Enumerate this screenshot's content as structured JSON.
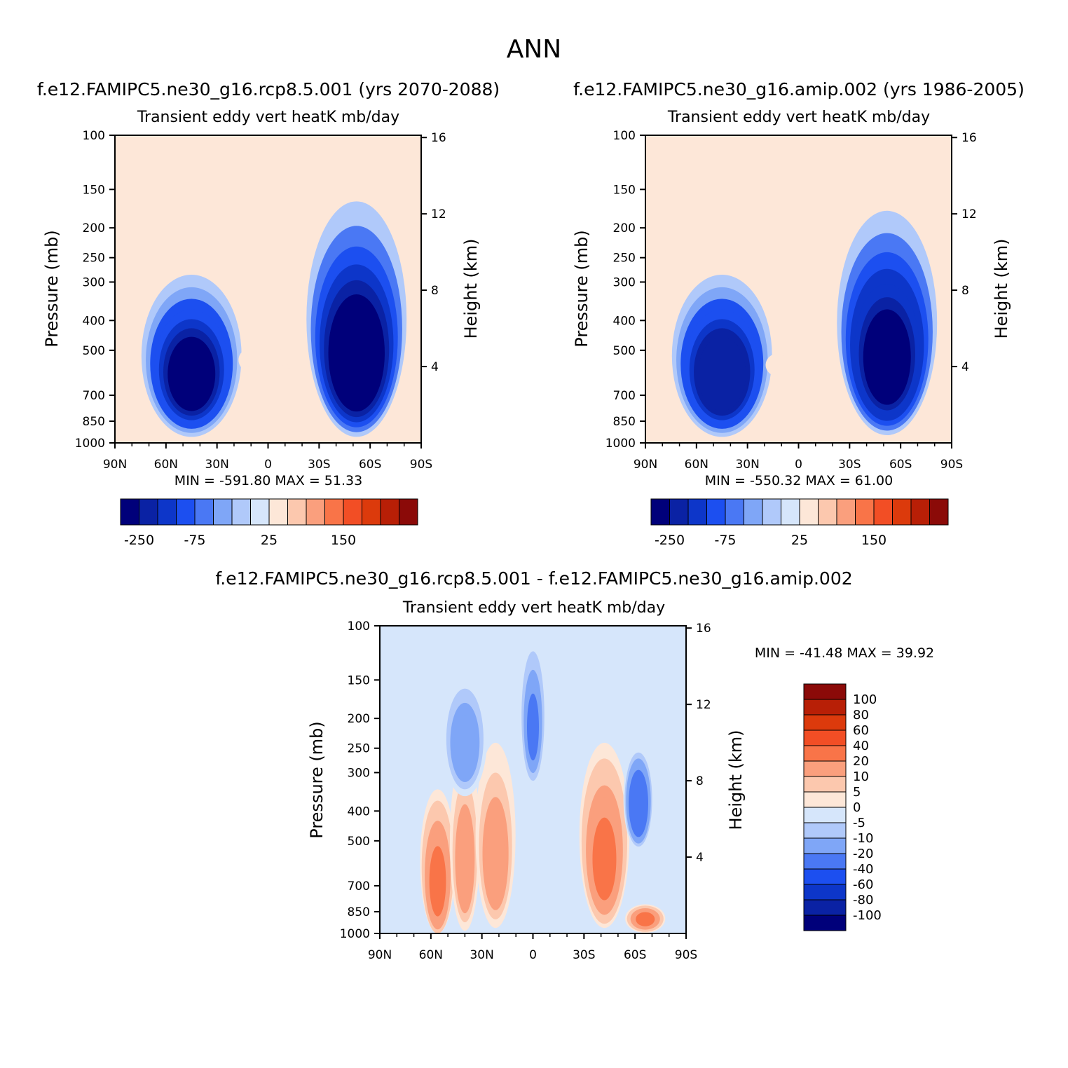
{
  "figure": {
    "title": "ANN"
  },
  "colors": {
    "main_scale": [
      "#00007a",
      "#0a22a4",
      "#0d36c9",
      "#1c4ff0",
      "#4a78f4",
      "#7fa6f7",
      "#b0c9fa",
      "#d6e6fb",
      "#fde7d8",
      "#fcc8ae",
      "#fa9f7d",
      "#f97448",
      "#f24e25",
      "#dc3a0c",
      "#b81f06",
      "#8b0a08"
    ],
    "diff_scale": [
      "#8b0a08",
      "#b81f06",
      "#dc3a0c",
      "#f24e25",
      "#f97448",
      "#fa9f7d",
      "#fcc8ae",
      "#fde7d8",
      "#d6e6fb",
      "#b0c9fa",
      "#7fa6f7",
      "#4a78f4",
      "#1c4ff0",
      "#0d36c9",
      "#0a22a4",
      "#00007a"
    ]
  },
  "chart_data": [
    {
      "type": "heatmap",
      "title": "f.e12.FAMIPC5.ne30_g16.rcp8.5.001 (yrs 2070-2088)",
      "subtitle": "Transient eddy vert heatK mb/day",
      "ylabel": "Pressure (mb)",
      "ylabel_right": "Height (km)",
      "x_ticks": [
        "90N",
        "60N",
        "30N",
        "0",
        "30S",
        "60S",
        "90S"
      ],
      "y_ticks": [
        "100",
        "150",
        "200",
        "250",
        "300",
        "400",
        "500",
        "700",
        "850",
        "1000"
      ],
      "y_right_ticks": [
        "16",
        "12",
        "8",
        "4"
      ],
      "min_max": "MIN = -591.80   MAX =  51.33",
      "colorbar_labels": [
        "-250",
        "-75",
        "25",
        "150"
      ],
      "features": [
        {
          "lat": 45,
          "p": 620,
          "rx": 20,
          "rp": 280,
          "value": -260
        },
        {
          "lat": -52,
          "p": 560,
          "rx": 20,
          "rp": 330,
          "value": -300
        },
        {
          "lat": 10,
          "p": 540,
          "rx": 5,
          "rp": 40,
          "value": 15
        },
        {
          "lat": -10,
          "p": 530,
          "rx": 6,
          "rp": 40,
          "value": 15
        }
      ]
    },
    {
      "type": "heatmap",
      "title": "f.e12.FAMIPC5.ne30_g16.amip.002 (yrs 1986-2005)",
      "subtitle": "Transient eddy vert heatK mb/day",
      "ylabel": "Pressure (mb)",
      "ylabel_right": "Height (km)",
      "x_ticks": [
        "90N",
        "60N",
        "30N",
        "0",
        "30S",
        "60S",
        "90S"
      ],
      "y_ticks": [
        "100",
        "150",
        "200",
        "250",
        "300",
        "400",
        "500",
        "700",
        "850",
        "1000"
      ],
      "y_right_ticks": [
        "16",
        "12",
        "8",
        "4"
      ],
      "min_max": "MIN = -550.32   MAX =  61.00",
      "colorbar_labels": [
        "-250",
        "-75",
        "25",
        "150"
      ],
      "features": [
        {
          "lat": 45,
          "p": 620,
          "rx": 20,
          "rp": 280,
          "value": -250
        },
        {
          "lat": -52,
          "p": 560,
          "rx": 20,
          "rp": 320,
          "value": -280
        },
        {
          "lat": 12,
          "p": 560,
          "rx": 5,
          "rp": 40,
          "value": 15
        },
        {
          "lat": -8,
          "p": 560,
          "rx": 5,
          "rp": 40,
          "value": 15
        }
      ]
    },
    {
      "type": "heatmap",
      "title": "f.e12.FAMIPC5.ne30_g16.rcp8.5.001 - f.e12.FAMIPC5.ne30_g16.amip.002",
      "subtitle": "Transient eddy vert heatK mb/day",
      "ylabel": "Pressure (mb)",
      "ylabel_right": "Height (km)",
      "x_ticks": [
        "90N",
        "60N",
        "30N",
        "0",
        "30S",
        "60S",
        "90S"
      ],
      "y_ticks": [
        "100",
        "150",
        "200",
        "250",
        "300",
        "400",
        "500",
        "700",
        "850",
        "1000"
      ],
      "y_right_ticks": [
        "16",
        "12",
        "8",
        "4"
      ],
      "min_max": "MIN = -41.48   MAX =  39.92",
      "colorbar_labels": [
        "100",
        "80",
        "60",
        "40",
        "20",
        "10",
        "5",
        "0",
        "-5",
        "-10",
        "-20",
        "-40",
        "-60",
        "-80",
        "-100"
      ],
      "features": [
        {
          "lat": 56,
          "p": 700,
          "rx": 7,
          "rp": 300,
          "value": 22
        },
        {
          "lat": 40,
          "p": 620,
          "rx": 6,
          "rp": 300,
          "value": 16
        },
        {
          "lat": 22,
          "p": 600,
          "rx": 8,
          "rp": 300,
          "value": 14
        },
        {
          "lat": -42,
          "p": 600,
          "rx": 10,
          "rp": 300,
          "value": 20
        },
        {
          "lat": -66,
          "p": 900,
          "rx": 8,
          "rp": 80,
          "value": 22
        },
        {
          "lat": 0,
          "p": 220,
          "rx": 5,
          "rp": 90,
          "value": -22
        },
        {
          "lat": -62,
          "p": 390,
          "rx": 6,
          "rp": 120,
          "value": -30
        },
        {
          "lat": 40,
          "p": 250,
          "rx": 9,
          "rp": 90,
          "value": -15
        }
      ]
    }
  ]
}
